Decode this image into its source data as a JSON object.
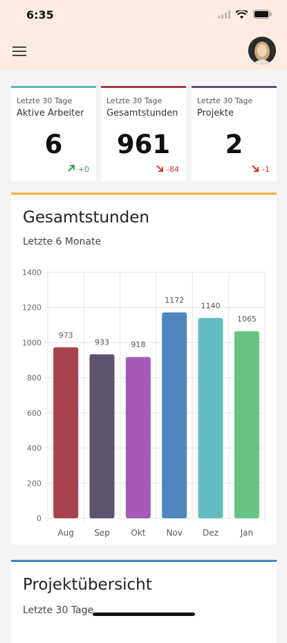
{
  "status_bar": {
    "time": "6:35"
  },
  "header": {
    "menu_icon": "hamburger-menu-icon",
    "avatar": "user-avatar"
  },
  "stats": [
    {
      "caption": "Letzte 30 Tage",
      "title": "Aktive Arbeiter",
      "value": "6",
      "delta": "+0",
      "trend": "up",
      "color": "#5bb5b8",
      "delta_color": "#2e9e4f"
    },
    {
      "caption": "Letzte 30 Tage",
      "title": "Gesamtstunden",
      "value": "961",
      "delta": "-84",
      "trend": "down",
      "color": "#a83a48",
      "delta_color": "#d9342b"
    },
    {
      "caption": "Letzte 30 Tage",
      "title": "Projekte",
      "value": "2",
      "delta": "-1",
      "trend": "down",
      "color": "#5e4d73",
      "delta_color": "#d9342b"
    }
  ],
  "chart": {
    "title": "Gesamtstunden",
    "subtitle": "Letzte 6 Monate"
  },
  "chart_data": {
    "type": "bar",
    "categories": [
      "Aug",
      "Sep",
      "Okt",
      "Nov",
      "Dez",
      "Jan"
    ],
    "values": [
      973,
      933,
      918,
      1172,
      1140,
      1065
    ],
    "colors": [
      "#a8424c",
      "#5e5370",
      "#a65ab8",
      "#4e86c0",
      "#63bcbf",
      "#67c383"
    ],
    "ylim": [
      0,
      1400
    ],
    "yticks": [
      0,
      200,
      400,
      600,
      800,
      1000,
      1200,
      1400
    ],
    "grid": true,
    "data_labels": true
  },
  "project_overview": {
    "title": "Projektübersicht",
    "subtitle": "Letzte 30 Tage"
  }
}
